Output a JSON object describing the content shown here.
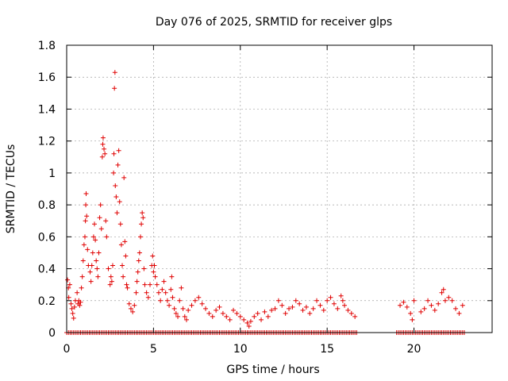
{
  "chart_data": {
    "type": "scatter",
    "title": "Day 076 of 2025, SRMTID for receiver glps",
    "xlabel": "GPS time / hours",
    "ylabel": "SRMTID / TECUs",
    "xlim": [
      0,
      24.5
    ],
    "ylim": [
      0,
      1.8
    ],
    "xticks": [
      0,
      5,
      10,
      15,
      20
    ],
    "xtick_labels": [
      "0",
      "5",
      "10",
      "15",
      "20"
    ],
    "yticks": [
      0,
      0.2,
      0.4,
      0.6,
      0.8,
      1.0,
      1.2,
      1.4,
      1.6,
      1.8
    ],
    "ytick_labels": [
      "0",
      "0.2",
      "0.4",
      "0.6",
      "0.8",
      "1",
      "1.2",
      "1.4",
      "1.6",
      "1.8"
    ],
    "grid": true,
    "marker": "+",
    "series": [
      {
        "name": "SRMTID",
        "color": "#e00000",
        "points": [
          [
            0.05,
            0.33
          ],
          [
            0.1,
            0.28
          ],
          [
            0.12,
            0.22
          ],
          [
            0.18,
            0.3
          ],
          [
            0.25,
            0.18
          ],
          [
            0.3,
            0.15
          ],
          [
            0.35,
            0.12
          ],
          [
            0.4,
            0.09
          ],
          [
            0.45,
            0.16
          ],
          [
            0.5,
            0.2
          ],
          [
            0.6,
            0.25
          ],
          [
            0.65,
            0.18
          ],
          [
            0.7,
            0.2
          ],
          [
            0.75,
            0.17
          ],
          [
            0.8,
            0.19
          ],
          [
            0.85,
            0.28
          ],
          [
            0.9,
            0.35
          ],
          [
            0.95,
            0.45
          ],
          [
            1.0,
            0.55
          ],
          [
            1.05,
            0.6
          ],
          [
            1.08,
            0.7
          ],
          [
            1.1,
            0.8
          ],
          [
            1.12,
            0.87
          ],
          [
            1.15,
            0.73
          ],
          [
            1.2,
            0.52
          ],
          [
            1.25,
            0.42
          ],
          [
            1.35,
            0.38
          ],
          [
            1.4,
            0.32
          ],
          [
            1.45,
            0.42
          ],
          [
            1.5,
            0.5
          ],
          [
            1.55,
            0.6
          ],
          [
            1.6,
            0.68
          ],
          [
            1.65,
            0.58
          ],
          [
            1.7,
            0.45
          ],
          [
            1.75,
            0.4
          ],
          [
            1.8,
            0.35
          ],
          [
            1.85,
            0.5
          ],
          [
            1.9,
            0.72
          ],
          [
            1.95,
            0.8
          ],
          [
            2.0,
            0.65
          ],
          [
            2.05,
            1.1
          ],
          [
            2.08,
            1.18
          ],
          [
            2.1,
            1.22
          ],
          [
            2.15,
            1.15
          ],
          [
            2.2,
            1.12
          ],
          [
            2.25,
            0.7
          ],
          [
            2.3,
            0.6
          ],
          [
            2.4,
            0.4
          ],
          [
            2.5,
            0.3
          ],
          [
            2.55,
            0.35
          ],
          [
            2.6,
            0.32
          ],
          [
            2.65,
            0.42
          ],
          [
            2.7,
            1.0
          ],
          [
            2.72,
            1.12
          ],
          [
            2.75,
            1.53
          ],
          [
            2.78,
            1.63
          ],
          [
            2.8,
            0.92
          ],
          [
            2.85,
            0.85
          ],
          [
            2.9,
            0.75
          ],
          [
            2.95,
            1.05
          ],
          [
            3.0,
            1.14
          ],
          [
            3.05,
            0.82
          ],
          [
            3.1,
            0.68
          ],
          [
            3.15,
            0.55
          ],
          [
            3.2,
            0.42
          ],
          [
            3.25,
            0.35
          ],
          [
            3.3,
            0.97
          ],
          [
            3.35,
            0.57
          ],
          [
            3.4,
            0.48
          ],
          [
            3.45,
            0.3
          ],
          [
            3.5,
            0.28
          ],
          [
            3.6,
            0.18
          ],
          [
            3.7,
            0.15
          ],
          [
            3.8,
            0.13
          ],
          [
            3.9,
            0.17
          ],
          [
            4.0,
            0.25
          ],
          [
            4.05,
            0.32
          ],
          [
            4.1,
            0.38
          ],
          [
            4.15,
            0.45
          ],
          [
            4.2,
            0.5
          ],
          [
            4.25,
            0.6
          ],
          [
            4.3,
            0.68
          ],
          [
            4.35,
            0.75
          ],
          [
            4.4,
            0.72
          ],
          [
            4.45,
            0.4
          ],
          [
            4.5,
            0.3
          ],
          [
            4.6,
            0.25
          ],
          [
            4.7,
            0.22
          ],
          [
            4.8,
            0.3
          ],
          [
            4.9,
            0.42
          ],
          [
            4.95,
            0.48
          ],
          [
            5.0,
            0.38
          ],
          [
            5.05,
            0.42
          ],
          [
            5.1,
            0.35
          ],
          [
            5.2,
            0.3
          ],
          [
            5.3,
            0.25
          ],
          [
            5.4,
            0.2
          ],
          [
            5.5,
            0.27
          ],
          [
            5.6,
            0.32
          ],
          [
            5.7,
            0.25
          ],
          [
            5.8,
            0.2
          ],
          [
            5.9,
            0.17
          ],
          [
            6.0,
            0.27
          ],
          [
            6.05,
            0.35
          ],
          [
            6.1,
            0.22
          ],
          [
            6.2,
            0.15
          ],
          [
            6.3,
            0.12
          ],
          [
            6.4,
            0.1
          ],
          [
            6.5,
            0.2
          ],
          [
            6.6,
            0.28
          ],
          [
            6.7,
            0.15
          ],
          [
            6.8,
            0.1
          ],
          [
            6.9,
            0.08
          ],
          [
            7.0,
            0.14
          ],
          [
            7.2,
            0.17
          ],
          [
            7.4,
            0.2
          ],
          [
            7.6,
            0.22
          ],
          [
            7.8,
            0.18
          ],
          [
            8.0,
            0.15
          ],
          [
            8.2,
            0.12
          ],
          [
            8.4,
            0.1
          ],
          [
            8.6,
            0.14
          ],
          [
            8.8,
            0.16
          ],
          [
            9.0,
            0.12
          ],
          [
            9.2,
            0.1
          ],
          [
            9.4,
            0.08
          ],
          [
            9.6,
            0.14
          ],
          [
            9.8,
            0.12
          ],
          [
            10.0,
            0.1
          ],
          [
            10.2,
            0.08
          ],
          [
            10.4,
            0.06
          ],
          [
            10.5,
            0.04
          ],
          [
            10.6,
            0.07
          ],
          [
            10.8,
            0.1
          ],
          [
            11.0,
            0.12
          ],
          [
            11.2,
            0.08
          ],
          [
            11.4,
            0.13
          ],
          [
            11.6,
            0.1
          ],
          [
            11.8,
            0.14
          ],
          [
            12.0,
            0.15
          ],
          [
            12.2,
            0.2
          ],
          [
            12.4,
            0.17
          ],
          [
            12.6,
            0.12
          ],
          [
            12.8,
            0.15
          ],
          [
            13.0,
            0.16
          ],
          [
            13.2,
            0.2
          ],
          [
            13.4,
            0.18
          ],
          [
            13.6,
            0.14
          ],
          [
            13.8,
            0.16
          ],
          [
            14.0,
            0.12
          ],
          [
            14.2,
            0.15
          ],
          [
            14.4,
            0.2
          ],
          [
            14.6,
            0.17
          ],
          [
            14.8,
            0.14
          ],
          [
            15.0,
            0.2
          ],
          [
            15.2,
            0.22
          ],
          [
            15.4,
            0.18
          ],
          [
            15.6,
            0.15
          ],
          [
            15.8,
            0.23
          ],
          [
            15.9,
            0.2
          ],
          [
            16.0,
            0.17
          ],
          [
            16.2,
            0.14
          ],
          [
            16.4,
            0.12
          ],
          [
            16.6,
            0.1
          ],
          [
            19.2,
            0.17
          ],
          [
            19.4,
            0.19
          ],
          [
            19.6,
            0.16
          ],
          [
            19.8,
            0.12
          ],
          [
            19.9,
            0.08
          ],
          [
            20.0,
            0.2
          ],
          [
            20.4,
            0.13
          ],
          [
            20.6,
            0.15
          ],
          [
            20.8,
            0.2
          ],
          [
            21.0,
            0.17
          ],
          [
            21.2,
            0.14
          ],
          [
            21.4,
            0.18
          ],
          [
            21.6,
            0.25
          ],
          [
            21.7,
            0.27
          ],
          [
            21.8,
            0.2
          ],
          [
            22.0,
            0.22
          ],
          [
            22.2,
            0.2
          ],
          [
            22.4,
            0.15
          ],
          [
            22.6,
            0.12
          ],
          [
            22.8,
            0.17
          ]
        ],
        "zero_bands": [
          [
            0.0,
            16.7
          ],
          [
            19.0,
            22.9
          ]
        ]
      }
    ]
  }
}
